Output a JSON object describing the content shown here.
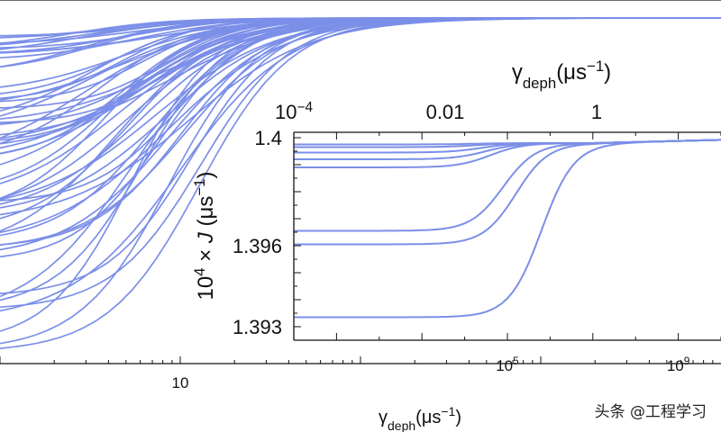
{
  "chart_data": [
    {
      "type": "line",
      "panel": "main",
      "xscale": "log",
      "xlim": [
        1,
        10000
      ],
      "ylim": [
        0.0,
        1.0
      ],
      "xticks": [
        {
          "value": 10,
          "label": "10"
        }
      ],
      "xlabel": {
        "base": "γ",
        "sub": "deph",
        "unit_open": "(μs",
        "sup": "−1",
        "unit_close": ")"
      },
      "line_color": "#7b8fe8",
      "n_curves": 60
    },
    {
      "type": "line",
      "panel": "inset",
      "xscale": "log",
      "xlim": [
        1,
        10000000000
      ],
      "ylim": [
        1.3925,
        1.4002
      ],
      "xticks_bottom": [
        {
          "value": 100000,
          "base": "10",
          "exp": "5"
        },
        {
          "value": 1000000000,
          "base": "10",
          "exp": "9"
        }
      ],
      "xticks_top": [
        {
          "value": 0.0001,
          "label": "10",
          "exp": "−4"
        },
        {
          "value": 0.01,
          "label": "0.01"
        },
        {
          "value": 1,
          "label": "1"
        }
      ],
      "yticks": [
        {
          "value": 1.393,
          "label": "1.393"
        },
        {
          "value": 1.396,
          "label": "1.396"
        },
        {
          "value": 1.4,
          "label": "1.4"
        }
      ],
      "xlabel_top": {
        "base": "γ",
        "sub": "deph",
        "unit_open": "(μs",
        "sup": "−1",
        "unit_close": ")"
      },
      "ylabel": {
        "prefix": "10",
        "sup": "4",
        "mid": " × ",
        "var": "J",
        "unit_open": " (μs",
        "unit_sup": "−1",
        "unit_close": ")"
      },
      "line_color": "#7b8fe8",
      "series": [
        {
          "low": 1.39335,
          "mid": 3.8
        },
        {
          "low": 1.39605,
          "mid": 3.2
        },
        {
          "low": 1.39655,
          "mid": 2.9
        },
        {
          "low": 1.3989,
          "mid": 2.6
        },
        {
          "low": 1.3992,
          "mid": 2.5
        },
        {
          "low": 1.39945,
          "mid": 2.4
        },
        {
          "low": 1.39965,
          "mid": 2.3
        },
        {
          "low": 1.39975,
          "mid": 2.2
        }
      ]
    }
  ],
  "watermark": "头条 @工程学习"
}
